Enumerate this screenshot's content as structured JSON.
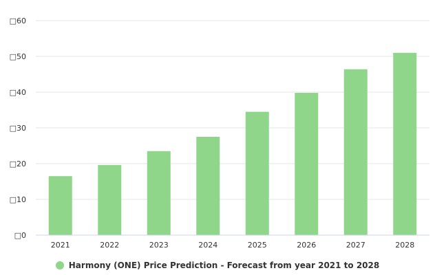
{
  "chart_data": {
    "type": "bar",
    "categories": [
      "2021",
      "2022",
      "2023",
      "2024",
      "2025",
      "2026",
      "2027",
      "2028"
    ],
    "series": [
      {
        "name": "Harmony (ONE) Price Prediction - Forecast from year 2021 to 2028",
        "values": [
          16.5,
          19.6,
          23.5,
          27.5,
          34.5,
          39.8,
          46.4,
          51.0
        ]
      }
    ],
    "y_tick_labels": [
      "□0",
      "□10",
      "□20",
      "□30",
      "□40",
      "□50",
      "□60"
    ],
    "y_ticks": [
      0,
      10,
      20,
      30,
      40,
      50,
      60
    ],
    "ylim": [
      0,
      60
    ],
    "grid": true,
    "legend_position": "bottom-center",
    "colors": {
      "bar": "#8fd68b",
      "grid": "#e6e6e6",
      "axis": "#ccd6eb",
      "text": "#333333"
    }
  }
}
